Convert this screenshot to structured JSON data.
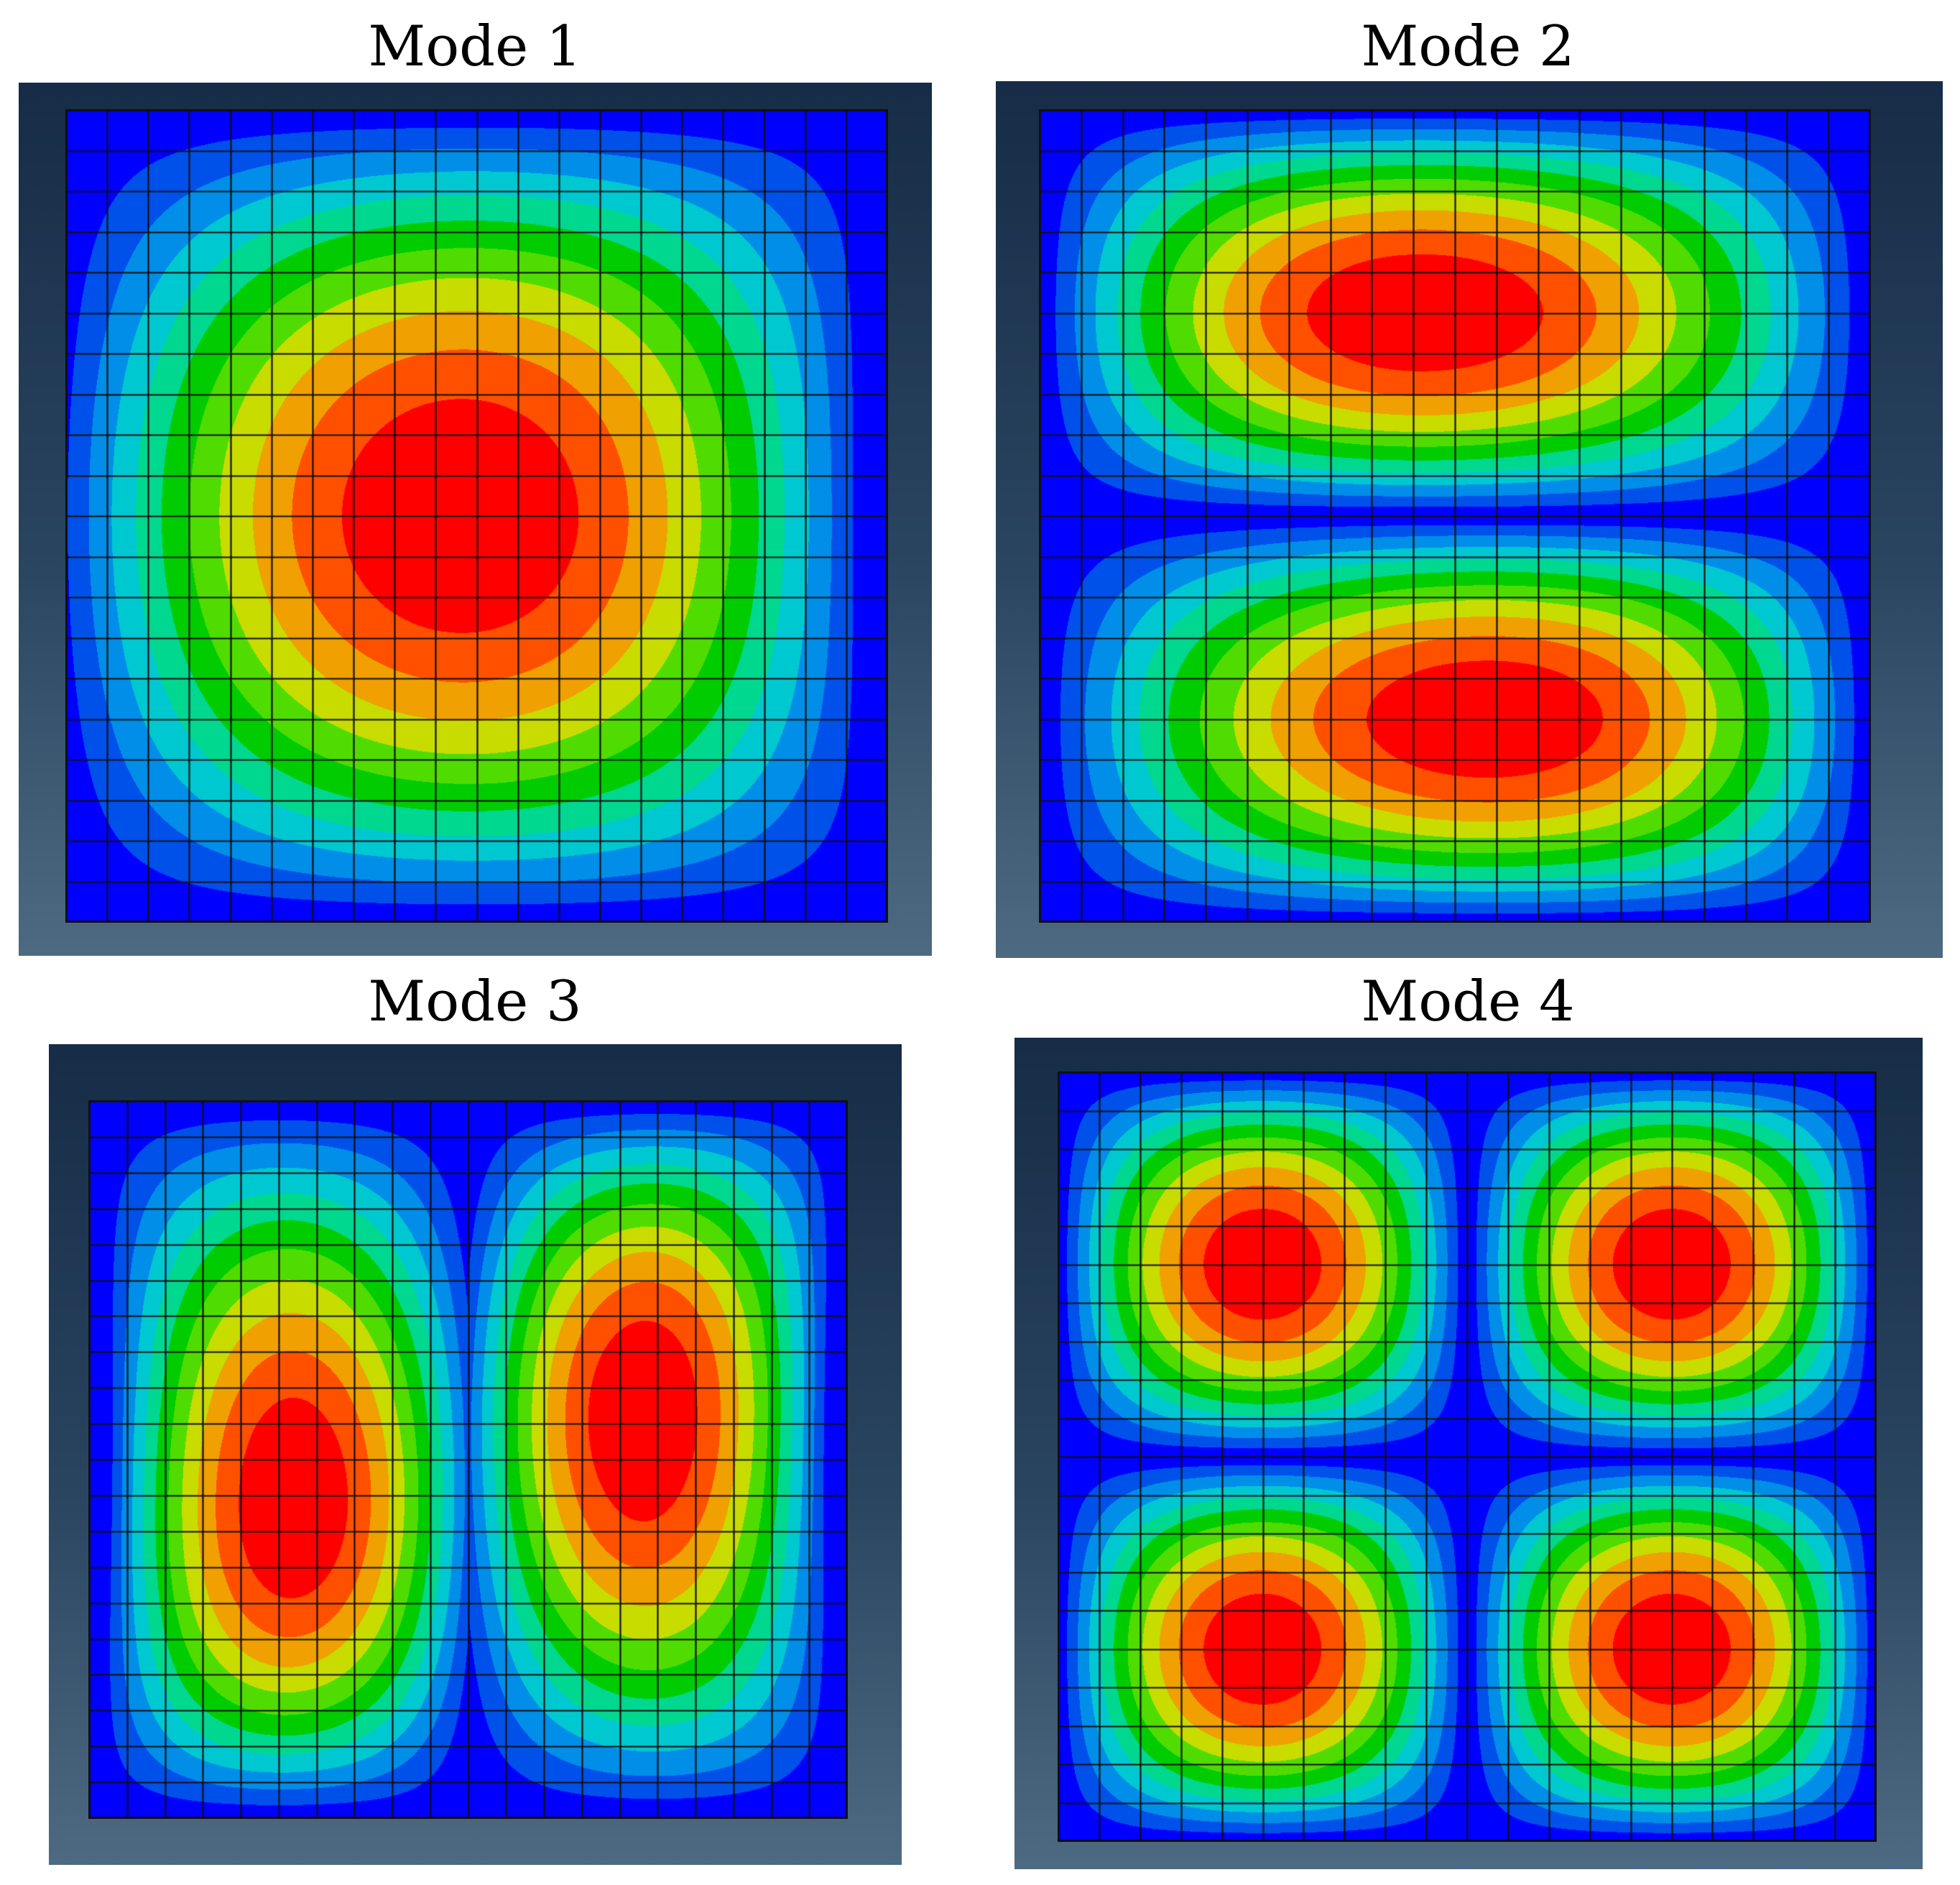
{
  "modes": [
    {
      "title": "Mode 1",
      "shape": "mode1"
    },
    {
      "title": "Mode 2",
      "shape": "mode2"
    },
    {
      "title": "Mode 3",
      "shape": "mode3"
    },
    {
      "title": "Mode 4",
      "shape": "mode4"
    }
  ],
  "mesh": {
    "columns": 20,
    "rows": 20
  },
  "colormap": [
    "#0000ff",
    "#0050ea",
    "#008ee8",
    "#00c8d0",
    "#00d890",
    "#00cc00",
    "#50dc00",
    "#c8dc00",
    "#f0a000",
    "#ff5000",
    "#ff0000"
  ]
}
